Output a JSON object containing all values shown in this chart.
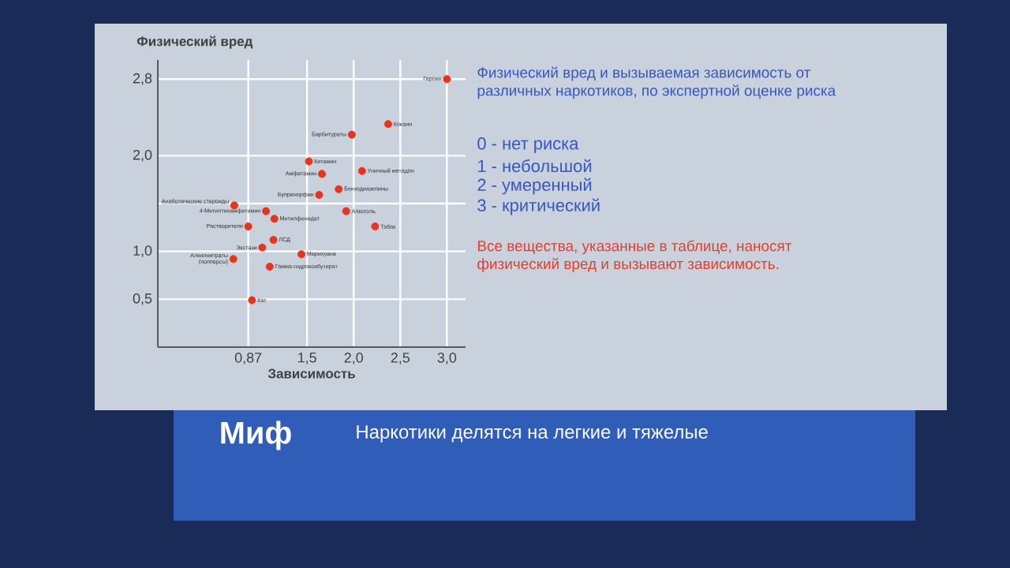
{
  "chart_data": {
    "type": "scatter",
    "title": "Физический вред и вызываемая зависимость от различных наркотиков, по экспертной оценке риска",
    "xlabel": "Зависимость",
    "ylabel": "Физический вред",
    "x": [
      3.0,
      2.37,
      1.98,
      1.52,
      1.66,
      2.09,
      1.84,
      1.63,
      0.72,
      1.06,
      1.15,
      1.92,
      2.23,
      0.87,
      1.14,
      1.02,
      1.44,
      0.71,
      1.1,
      0.91
    ],
    "values": [
      2.8,
      2.33,
      2.22,
      1.94,
      1.81,
      1.84,
      1.65,
      1.59,
      1.48,
      1.42,
      1.34,
      1.42,
      1.26,
      1.26,
      1.12,
      1.04,
      0.97,
      0.92,
      0.84,
      0.49
    ],
    "color": "#e8341c",
    "marker": "circle",
    "grid": true,
    "xlim": [
      -0.1,
      3.2
    ],
    "ylim": [
      0,
      3.0
    ],
    "xticks": [
      {
        "value": 0.87,
        "label": "0,87"
      },
      {
        "value": 1.5,
        "label": "1,5"
      },
      {
        "value": 2.0,
        "label": "2,0"
      },
      {
        "value": 2.5,
        "label": "2,5"
      },
      {
        "value": 3.0,
        "label": "3,0"
      }
    ],
    "yticks": [
      {
        "value": 0.5,
        "label": "0,5"
      },
      {
        "value": 1.0,
        "label": "1,0"
      },
      {
        "value": 1.5,
        "label": null
      },
      {
        "value": 2.0,
        "label": "2,0"
      },
      {
        "value": 2.8,
        "label": "2,8"
      }
    ],
    "annotations": [
      {
        "text": "Героин",
        "x": 3.0,
        "y": 2.8
      },
      {
        "text": "Кокаин",
        "x": 2.37,
        "y": 2.33
      },
      {
        "text": "Барбитураты",
        "x": 1.98,
        "y": 2.22
      },
      {
        "text": "Кетамин",
        "x": 1.52,
        "y": 1.94
      },
      {
        "text": "Амфетамин",
        "x": 1.66,
        "y": 1.81
      },
      {
        "text": "Уличный метадон",
        "x": 2.09,
        "y": 1.84
      },
      {
        "text": "Бензодиазепины",
        "x": 1.84,
        "y": 1.65
      },
      {
        "text": "Бупренорфин",
        "x": 1.63,
        "y": 1.59
      },
      {
        "text": "Анаболические стероиды",
        "x": 0.72,
        "y": 1.48
      },
      {
        "text": "4-Метилтиоамфетамин",
        "x": 1.06,
        "y": 1.42
      },
      {
        "text": "Метилфенидат",
        "x": 1.15,
        "y": 1.34
      },
      {
        "text": "Алкоголь",
        "x": 1.92,
        "y": 1.42
      },
      {
        "text": "Табак",
        "x": 2.23,
        "y": 1.26
      },
      {
        "text": "Растворители",
        "x": 0.87,
        "y": 1.26
      },
      {
        "text": "ЛСД",
        "x": 1.14,
        "y": 1.12
      },
      {
        "text": "Экстази",
        "x": 1.02,
        "y": 1.04
      },
      {
        "text": "Марихуана",
        "x": 1.44,
        "y": 0.97
      },
      {
        "text": "Алкилнитраты (попперсы)",
        "x": 0.71,
        "y": 0.92
      },
      {
        "text": "Гамма-гидроксибутират",
        "x": 1.1,
        "y": 0.84
      },
      {
        "text": "Кат",
        "x": 0.91,
        "y": 0.49
      },
      "0 - нет риска",
      "1 - небольшой",
      "2 - умеренный",
      "3 - критический",
      "Все вещества, указанные в таблице, наносят физический вред и вызывают зависимость.",
      "Миф",
      "Наркотики делятся на легкие и тяжелые"
    ]
  }
}
